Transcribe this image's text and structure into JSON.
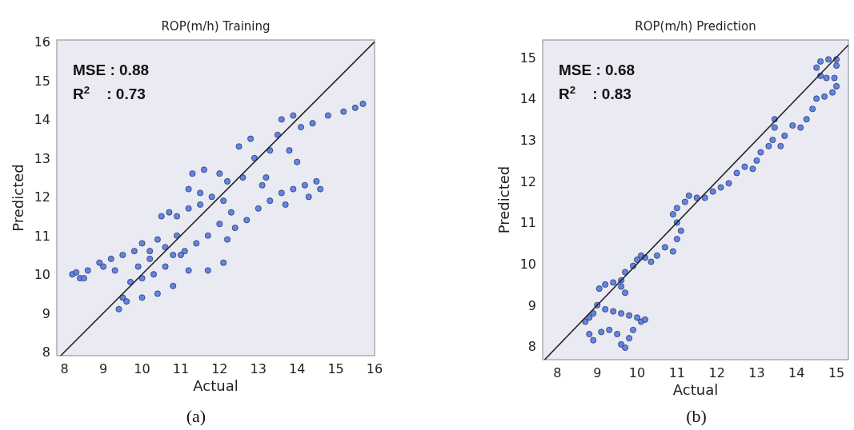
{
  "chart_data": [
    {
      "type": "scatter",
      "title": "ROP(m/h) Training",
      "xlabel": "Actual",
      "ylabel": "Predicted",
      "xlim": [
        7.8,
        16
      ],
      "ylim": [
        7.9,
        16.05
      ],
      "xticks": [
        8,
        9,
        10,
        11,
        12,
        13,
        14,
        15,
        16
      ],
      "yticks": [
        8,
        9,
        10,
        11,
        12,
        13,
        14,
        15,
        16
      ],
      "grid": false,
      "annotations": [
        "MSE : 0.88",
        "R$^{2}$    : 0.73",
        "(a)"
      ],
      "series": [
        {
          "marker": "circle",
          "color": "#5b7fdf",
          "x": [
            8.2,
            8.3,
            8.4,
            8.5,
            8.6,
            8.9,
            9.0,
            9.2,
            9.3,
            9.5,
            9.8,
            9.9,
            10.0,
            10.2,
            10.2,
            10.4,
            10.5,
            10.6,
            10.7,
            10.9,
            10.9,
            11.0,
            11.2,
            11.5,
            11.8,
            12.1,
            12.3,
            12.0,
            11.7,
            11.4,
            11.1,
            10.8,
            10.6,
            10.3,
            10.0,
            9.7,
            9.5,
            9.4,
            9.6,
            10.0,
            10.4,
            10.8,
            11.2,
            11.7,
            12.1,
            12.2,
            12.4,
            12.7,
            13.0,
            13.3,
            13.6,
            13.9,
            14.2,
            14.5,
            14.6,
            14.3,
            13.7,
            13.1,
            12.6,
            12.2,
            11.6,
            11.3,
            11.2,
            11.5,
            12.0,
            12.5,
            12.8,
            12.9,
            13.2,
            13.3,
            13.5,
            13.6,
            13.9,
            14.1,
            14.4,
            14.8,
            15.2,
            15.5,
            15.7,
            13.8,
            14.0
          ],
          "values": [
            10.0,
            10.05,
            9.9,
            9.9,
            10.1,
            10.3,
            10.2,
            10.4,
            10.1,
            10.5,
            10.6,
            10.2,
            10.8,
            10.6,
            10.4,
            10.9,
            11.5,
            10.7,
            11.6,
            11.5,
            11.0,
            10.5,
            11.7,
            11.8,
            12.0,
            11.9,
            11.6,
            11.3,
            11.0,
            10.8,
            10.6,
            10.5,
            10.2,
            10.0,
            9.9,
            9.8,
            9.4,
            9.1,
            9.3,
            9.4,
            9.5,
            9.7,
            10.1,
            10.1,
            10.3,
            10.9,
            11.2,
            11.4,
            11.7,
            11.9,
            12.1,
            12.2,
            12.3,
            12.4,
            12.2,
            12.0,
            11.8,
            12.3,
            12.5,
            12.4,
            12.7,
            12.6,
            12.2,
            12.1,
            12.6,
            13.3,
            13.5,
            13.0,
            12.5,
            13.2,
            13.6,
            14.0,
            14.1,
            13.8,
            13.9,
            14.1,
            14.2,
            14.3,
            14.4,
            13.2,
            12.9
          ]
        },
        {
          "type": "line",
          "color": "#222222",
          "x": [
            7.9,
            16
          ],
          "values": [
            7.9,
            16
          ]
        }
      ]
    },
    {
      "type": "scatter",
      "title": "ROP(m/h) Prediction",
      "xlabel": "Actual",
      "ylabel": "Predicted",
      "xlim": [
        7.63,
        15.3
      ],
      "ylim": [
        7.68,
        15.42
      ],
      "xticks": [
        8,
        9,
        10,
        11,
        12,
        13,
        14,
        15
      ],
      "yticks": [
        8,
        9,
        10,
        11,
        12,
        13,
        14,
        15
      ],
      "grid": false,
      "annotations": [
        "MSE : 0.68",
        "R$^{2}$    : 0.83",
        "(b)"
      ],
      "series": [
        {
          "marker": "circle",
          "color": "#5b7fdf",
          "x": [
            8.7,
            8.8,
            8.9,
            9.1,
            9.3,
            9.5,
            9.6,
            9.7,
            9.8,
            9.9,
            10.1,
            10.2,
            10.0,
            9.8,
            9.6,
            9.4,
            9.2,
            9.0,
            8.9,
            8.8,
            9.05,
            9.2,
            9.4,
            9.6,
            9.7,
            9.6,
            9.7,
            9.9,
            10.0,
            10.1,
            10.2,
            10.35,
            10.5,
            10.7,
            10.9,
            11.0,
            11.1,
            11.0,
            10.9,
            11.0,
            11.2,
            11.3,
            11.5,
            11.7,
            11.9,
            12.1,
            12.3,
            12.5,
            12.7,
            12.9,
            13.0,
            13.1,
            13.3,
            13.4,
            13.45,
            13.45,
            13.6,
            13.7,
            13.9,
            14.1,
            14.25,
            14.4,
            14.5,
            14.7,
            14.9,
            15.0,
            14.95,
            15.0,
            15.0,
            14.8,
            14.6,
            14.5,
            14.6,
            14.75
          ],
          "values": [
            8.6,
            8.3,
            8.15,
            8.35,
            8.4,
            8.3,
            8.05,
            7.97,
            8.2,
            8.4,
            8.6,
            8.65,
            8.7,
            8.75,
            8.8,
            8.85,
            8.9,
            9.0,
            8.8,
            8.7,
            9.4,
            9.5,
            9.55,
            9.45,
            9.3,
            9.6,
            9.8,
            9.95,
            10.1,
            10.2,
            10.15,
            10.05,
            10.2,
            10.4,
            10.3,
            10.6,
            10.8,
            11.0,
            11.2,
            11.35,
            11.5,
            11.65,
            11.6,
            11.6,
            11.75,
            11.85,
            11.95,
            12.2,
            12.35,
            12.3,
            12.5,
            12.7,
            12.85,
            13.0,
            13.3,
            13.5,
            12.85,
            13.1,
            13.35,
            13.3,
            13.5,
            13.75,
            14.0,
            14.05,
            14.15,
            14.3,
            14.5,
            14.8,
            14.95,
            14.95,
            14.9,
            14.75,
            14.55,
            14.5
          ]
        },
        {
          "type": "line",
          "color": "#222222",
          "x": [
            7.68,
            15.3
          ],
          "values": [
            7.68,
            15.3
          ]
        }
      ]
    }
  ]
}
